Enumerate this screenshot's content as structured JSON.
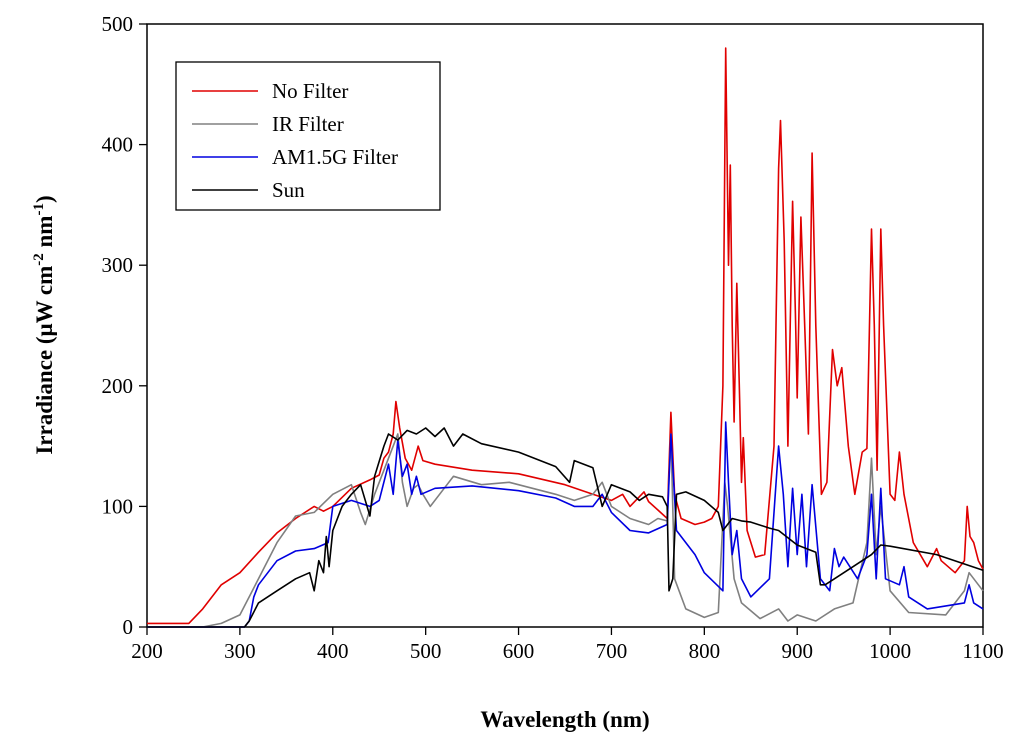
{
  "chart_data": {
    "type": "line",
    "xlabel": "Wavelength (nm)",
    "ylabel": "Irradiance (μW cm-2 nm-1)",
    "ylabel_parts": {
      "main": "Irradiance (μW cm",
      "sup1": "-2",
      "mid": " nm",
      "sup2": "-1",
      "end": ")"
    },
    "xlim": [
      200,
      1100
    ],
    "ylim": [
      0,
      500
    ],
    "xticks": [
      200,
      300,
      400,
      500,
      600,
      700,
      800,
      900,
      1000,
      1100
    ],
    "yticks": [
      0,
      100,
      200,
      300,
      400,
      500
    ],
    "grid": false,
    "legend_position": "top-left",
    "series": [
      {
        "name": "No Filter",
        "color": "#e00000",
        "x": [
          200,
          245,
          260,
          280,
          300,
          320,
          340,
          360,
          380,
          390,
          400,
          420,
          440,
          450,
          455,
          460,
          465,
          468,
          472,
          478,
          485,
          492,
          497,
          510,
          550,
          600,
          650,
          680,
          700,
          712,
          720,
          735,
          740,
          750,
          760,
          764,
          768,
          775,
          790,
          800,
          808,
          815,
          820,
          823,
          826,
          828,
          830,
          832,
          835,
          838,
          840,
          842,
          846,
          855,
          865,
          875,
          880,
          882,
          886,
          890,
          895,
          898,
          900,
          904,
          908,
          912,
          916,
          920,
          926,
          932,
          938,
          943,
          948,
          955,
          962,
          970,
          975,
          980,
          983,
          986,
          990,
          993,
          1000,
          1005,
          1010,
          1015,
          1025,
          1040,
          1050,
          1055,
          1070,
          1080,
          1083,
          1086,
          1090,
          1095,
          1100
        ],
        "y": [
          3,
          3,
          15,
          35,
          45,
          62,
          78,
          90,
          100,
          96,
          100,
          115,
          122,
          126,
          140,
          145,
          160,
          187,
          165,
          140,
          130,
          150,
          138,
          135,
          130,
          127,
          118,
          110,
          105,
          110,
          100,
          112,
          104,
          97,
          90,
          178,
          110,
          90,
          85,
          87,
          90,
          100,
          200,
          480,
          300,
          383,
          250,
          170,
          285,
          190,
          120,
          157,
          80,
          58,
          60,
          150,
          380,
          420,
          320,
          150,
          353,
          260,
          190,
          340,
          250,
          160,
          393,
          250,
          110,
          120,
          230,
          200,
          215,
          150,
          110,
          145,
          148,
          330,
          250,
          130,
          330,
          250,
          110,
          105,
          145,
          110,
          70,
          50,
          65,
          55,
          45,
          55,
          100,
          75,
          70,
          55,
          48
        ]
      },
      {
        "name": "IR Filter",
        "color": "#808080",
        "x": [
          200,
          260,
          280,
          300,
          320,
          340,
          360,
          380,
          400,
          420,
          430,
          435,
          445,
          455,
          465,
          470,
          475,
          480,
          487,
          492,
          497,
          505,
          520,
          530,
          560,
          590,
          640,
          660,
          680,
          690,
          700,
          720,
          740,
          750,
          760,
          764,
          768,
          780,
          800,
          815,
          822,
          825,
          832,
          840,
          860,
          880,
          890,
          900,
          920,
          940,
          960,
          975,
          980,
          985,
          990,
          1000,
          1020,
          1060,
          1080,
          1085,
          1100
        ],
        "y": [
          0,
          0,
          3,
          10,
          40,
          70,
          92,
          95,
          110,
          118,
          95,
          85,
          110,
          130,
          150,
          160,
          120,
          100,
          115,
          118,
          110,
          100,
          115,
          125,
          118,
          120,
          110,
          105,
          110,
          120,
          100,
          90,
          85,
          90,
          88,
          160,
          40,
          15,
          8,
          12,
          120,
          100,
          40,
          20,
          7,
          15,
          5,
          10,
          5,
          15,
          20,
          70,
          140,
          60,
          100,
          30,
          12,
          10,
          30,
          45,
          30
        ]
      },
      {
        "name": "AM1.5G Filter",
        "color": "#0000e0",
        "x": [
          200,
          305,
          310,
          315,
          320,
          340,
          360,
          380,
          395,
          400,
          420,
          440,
          450,
          460,
          465,
          470,
          475,
          480,
          485,
          490,
          495,
          510,
          550,
          600,
          640,
          660,
          680,
          690,
          700,
          720,
          740,
          760,
          764,
          770,
          790,
          800,
          820,
          823,
          826,
          830,
          835,
          840,
          850,
          870,
          880,
          885,
          890,
          895,
          900,
          905,
          910,
          916,
          925,
          935,
          940,
          945,
          950,
          965,
          975,
          980,
          985,
          990,
          995,
          1010,
          1015,
          1020,
          1040,
          1080,
          1085,
          1090,
          1100
        ],
        "y": [
          0,
          0,
          5,
          25,
          35,
          55,
          63,
          65,
          70,
          100,
          105,
          100,
          105,
          135,
          110,
          155,
          125,
          135,
          110,
          125,
          110,
          115,
          117,
          113,
          107,
          100,
          100,
          110,
          95,
          80,
          78,
          85,
          160,
          80,
          60,
          45,
          30,
          170,
          120,
          60,
          80,
          40,
          25,
          40,
          150,
          110,
          50,
          115,
          60,
          110,
          50,
          118,
          40,
          30,
          65,
          50,
          58,
          40,
          60,
          110,
          40,
          115,
          40,
          35,
          50,
          25,
          15,
          20,
          35,
          20,
          15
        ]
      },
      {
        "name": "Sun",
        "color": "#000000",
        "x": [
          200,
          305,
          310,
          320,
          340,
          360,
          375,
          380,
          385,
          390,
          393,
          396,
          400,
          410,
          420,
          430,
          440,
          445,
          455,
          460,
          470,
          480,
          490,
          500,
          510,
          520,
          530,
          540,
          560,
          600,
          640,
          655,
          660,
          680,
          690,
          700,
          720,
          730,
          740,
          755,
          760,
          762,
          766,
          770,
          780,
          800,
          815,
          820,
          830,
          840,
          850,
          870,
          880,
          900,
          920,
          925,
          930,
          940,
          960,
          980,
          990,
          1000,
          1050,
          1100
        ],
        "y": [
          0,
          0,
          5,
          20,
          30,
          40,
          45,
          30,
          55,
          45,
          75,
          50,
          80,
          100,
          110,
          118,
          92,
          125,
          150,
          160,
          155,
          163,
          160,
          165,
          158,
          165,
          150,
          160,
          152,
          145,
          133,
          120,
          138,
          132,
          100,
          118,
          112,
          105,
          110,
          108,
          100,
          30,
          40,
          110,
          112,
          105,
          95,
          80,
          90,
          88,
          87,
          82,
          80,
          68,
          62,
          35,
          35,
          40,
          50,
          60,
          68,
          67,
          60,
          47
        ]
      }
    ]
  }
}
